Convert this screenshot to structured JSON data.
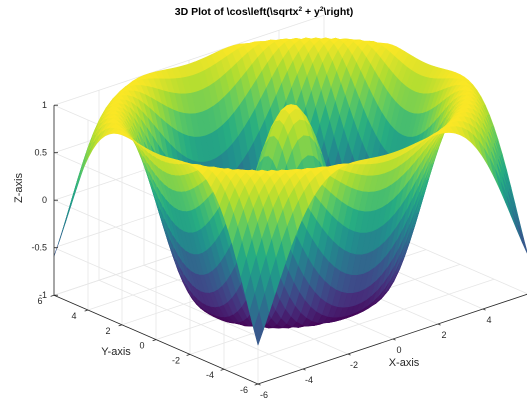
{
  "chart_data": {
    "type": "surface",
    "title_main": "3D Plot of \\cos\\left(\\sqrtx",
    "title_sup1": "2",
    "title_mid": " + y",
    "title_sup2": "2",
    "title_end": "\\right)",
    "function": "z = cos(sqrt(x^2 + y^2))",
    "x_range": [
      -6,
      6
    ],
    "y_range": [
      -6,
      6
    ],
    "z_range": [
      -1,
      1
    ],
    "x_ticks": [
      -6,
      -4,
      -2,
      0,
      2,
      4,
      6
    ],
    "x_tick_labels": [
      "-6",
      "-4",
      "-2",
      "0",
      "2",
      "4",
      "6"
    ],
    "y_ticks": [
      -6,
      -4,
      -2,
      0,
      2,
      4,
      6
    ],
    "y_tick_labels": [
      "-6",
      "-4",
      "-2",
      "0",
      "2",
      "4",
      "6"
    ],
    "z_ticks": [
      -1,
      -0.5,
      0,
      0.5,
      1
    ],
    "z_tick_labels": [
      "-1",
      "-0.5",
      "0",
      "0.5",
      "1"
    ],
    "xlabel": "X-axis",
    "ylabel": "Y-axis",
    "zlabel": "Z-axis",
    "colormap": "viridis",
    "grid": true,
    "shading": "interp"
  }
}
